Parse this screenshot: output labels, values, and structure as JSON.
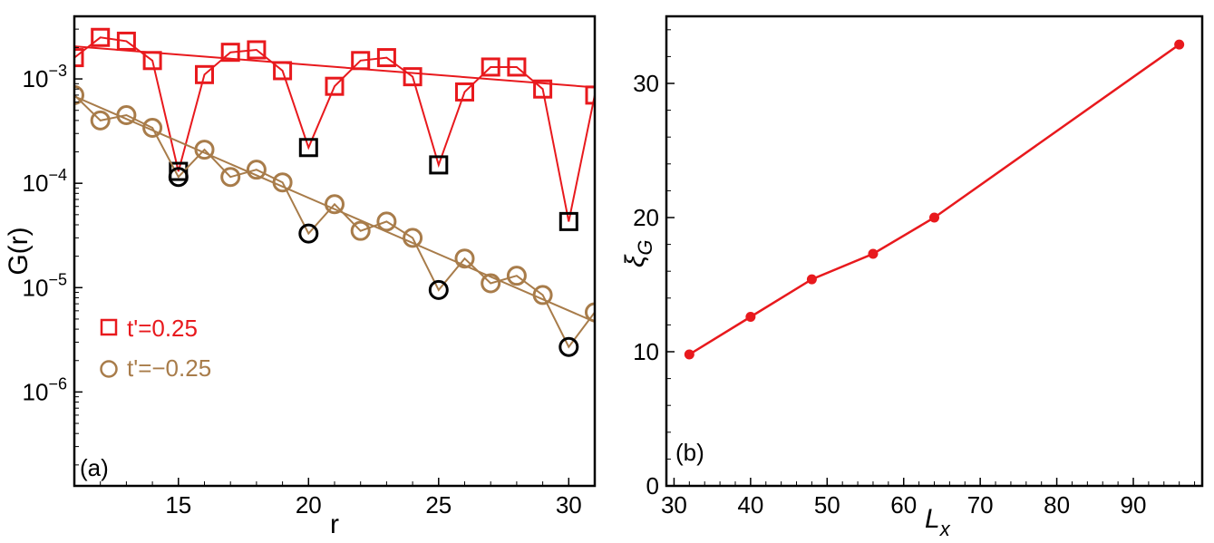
{
  "chart_data": [
    {
      "panel": "(a)",
      "type": "scatter",
      "xlabel": "r",
      "ylabel": "G(r)",
      "yscale": "log",
      "xlim": [
        11,
        31
      ],
      "ylim_exp": [
        -6.9,
        -2.4
      ],
      "xticks": [
        15,
        20,
        25,
        30
      ],
      "yticks_exp": [
        -6,
        -5,
        -4,
        -3
      ],
      "ytick_base": "10",
      "legend": {
        "position": "bottom-left"
      },
      "series": [
        {
          "name": "t'=0.25",
          "marker": "square",
          "color": "#e8191d",
          "x": [
            11,
            12,
            13,
            14,
            15,
            16,
            17,
            18,
            19,
            20,
            21,
            22,
            23,
            24,
            25,
            26,
            27,
            28,
            29,
            30,
            31
          ],
          "y": [
            0.0016,
            0.0025,
            0.0023,
            0.0015,
            0.00013,
            0.0011,
            0.0018,
            0.0019,
            0.0012,
            0.00022,
            0.00085,
            0.0015,
            0.0016,
            0.00105,
            0.00015,
            0.00075,
            0.0013,
            0.0013,
            0.0008,
            4.3e-05,
            0.0007
          ],
          "highlighted_x": [
            15,
            20,
            25,
            30
          ],
          "fit": {
            "x": [
              11,
              31
            ],
            "y": [
              0.00205,
              0.00083
            ]
          }
        },
        {
          "name": "t'=−0.25",
          "marker": "circle",
          "color": "#a87c4a",
          "x": [
            11,
            12,
            13,
            14,
            15,
            16,
            17,
            18,
            19,
            20,
            21,
            22,
            23,
            24,
            25,
            26,
            27,
            28,
            29,
            30,
            31
          ],
          "y": [
            0.0007,
            0.0004,
            0.00045,
            0.00034,
            0.000115,
            0.00021,
            0.000115,
            0.000135,
            0.000102,
            3.3e-05,
            6.3e-05,
            3.5e-05,
            4.3e-05,
            3e-05,
            9.5e-06,
            1.9e-05,
            1.1e-05,
            1.3e-05,
            8.5e-06,
            2.7e-06,
            5.8e-06
          ],
          "highlighted_x": [
            15,
            20,
            25,
            30
          ],
          "fit": {
            "x": [
              11,
              31
            ],
            "y": [
              0.00068,
              4.7e-06
            ]
          }
        }
      ]
    },
    {
      "panel": "(b)",
      "type": "line",
      "xlabel": "L",
      "xlabel_sub": "x",
      "ylabel": "ξ",
      "ylabel_sub": "G",
      "xlim": [
        29,
        99
      ],
      "ylim": [
        0,
        35
      ],
      "xticks": [
        30,
        40,
        50,
        60,
        70,
        80,
        90
      ],
      "yticks": [
        0,
        10,
        20,
        30
      ],
      "series": [
        {
          "name": "xi_G",
          "color": "#e8191d",
          "x": [
            32,
            40,
            48,
            56,
            64,
            96
          ],
          "y": [
            9.8,
            12.6,
            15.4,
            17.3,
            20.0,
            32.9
          ]
        }
      ]
    }
  ]
}
